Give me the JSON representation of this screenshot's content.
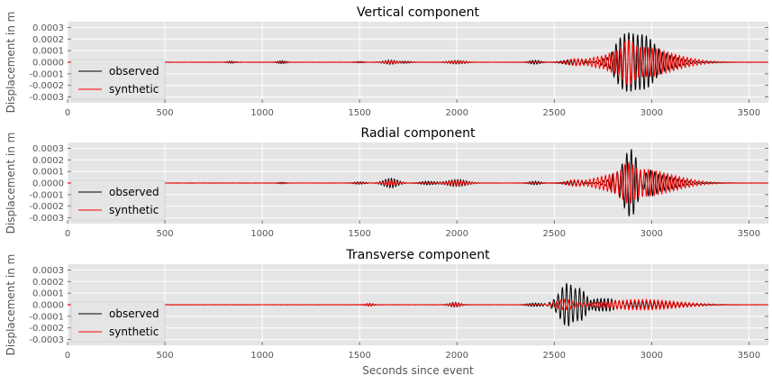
{
  "chart_data": [
    {
      "type": "line",
      "title": "Vertical component",
      "ylabel": "Displacement in m",
      "xlabel": "",
      "xlim": [
        0,
        3600
      ],
      "ylim": [
        -0.00035,
        0.00035
      ],
      "xticks": [
        "0",
        "500",
        "1000",
        "1500",
        "2000",
        "2500",
        "3000",
        "3500"
      ],
      "yticks": [
        "-0.0003",
        "-0.0002",
        "-0.0001",
        "0.0000",
        "0.0001",
        "0.0002",
        "0.0003"
      ],
      "grid": true,
      "legend": "lower-left",
      "series": [
        {
          "name": "observed",
          "color": "#000000",
          "events": [
            {
              "t": 840,
              "amp": 8e-06,
              "period": 12,
              "dur": 30
            },
            {
              "t": 1100,
              "amp": 1.2e-05,
              "period": 12,
              "dur": 30
            },
            {
              "t": 1500,
              "amp": 6e-06,
              "period": 12,
              "dur": 30
            },
            {
              "t": 1660,
              "amp": 1.8e-05,
              "period": 15,
              "dur": 50
            },
            {
              "t": 1730,
              "amp": 1e-05,
              "period": 15,
              "dur": 40
            },
            {
              "t": 2000,
              "amp": 1.5e-05,
              "period": 15,
              "dur": 60
            },
            {
              "t": 2400,
              "amp": 1.7e-05,
              "period": 15,
              "dur": 40
            },
            {
              "t": 2600,
              "amp": 2.5e-05,
              "period": 18,
              "dur": 70
            },
            {
              "t": 2780,
              "amp": 2.2e-05,
              "period": 18,
              "dur": 40
            },
            {
              "t": 2900,
              "amp": 0.00032,
              "period": 22,
              "dur": 90
            },
            {
              "t": 2990,
              "amp": 0.0001,
              "period": 20,
              "dur": 150
            }
          ]
        },
        {
          "name": "synthetic",
          "color": "#ff0000",
          "events": [
            {
              "t": 1660,
              "amp": 1.2e-05,
              "period": 15,
              "dur": 50
            },
            {
              "t": 2000,
              "amp": 1e-05,
              "period": 15,
              "dur": 60
            },
            {
              "t": 2600,
              "amp": 1.5e-05,
              "period": 18,
              "dur": 70
            },
            {
              "t": 2750,
              "amp": 1e-05,
              "period": 18,
              "dur": 40
            },
            {
              "t": 2880,
              "amp": 8e-05,
              "period": 22,
              "dur": 40
            },
            {
              "t": 2940,
              "amp": 0.00013,
              "period": 20,
              "dur": 230
            }
          ]
        }
      ]
    },
    {
      "type": "line",
      "title": "Radial component",
      "ylabel": "Displacement in m",
      "xlabel": "",
      "xlim": [
        0,
        3600
      ],
      "ylim": [
        -0.00035,
        0.00035
      ],
      "xticks": [
        "0",
        "500",
        "1000",
        "1500",
        "2000",
        "2500",
        "3000",
        "3500"
      ],
      "yticks": [
        "-0.0003",
        "-0.0002",
        "-0.0001",
        "0.0000",
        "0.0001",
        "0.0002",
        "0.0003"
      ],
      "grid": true,
      "legend": "lower-left",
      "series": [
        {
          "name": "observed",
          "color": "#000000",
          "events": [
            {
              "t": 1100,
              "amp": 6e-06,
              "period": 12,
              "dur": 30
            },
            {
              "t": 1500,
              "amp": 1e-05,
              "period": 15,
              "dur": 40
            },
            {
              "t": 1660,
              "amp": 4e-05,
              "period": 15,
              "dur": 50
            },
            {
              "t": 1850,
              "amp": 1.5e-05,
              "period": 15,
              "dur": 50
            },
            {
              "t": 2000,
              "amp": 3e-05,
              "period": 15,
              "dur": 70
            },
            {
              "t": 2400,
              "amp": 1.5e-05,
              "period": 15,
              "dur": 40
            },
            {
              "t": 2600,
              "amp": 2e-05,
              "period": 18,
              "dur": 60
            },
            {
              "t": 2780,
              "amp": 1.5e-05,
              "period": 18,
              "dur": 40
            },
            {
              "t": 2890,
              "amp": 0.00024,
              "period": 24,
              "dur": 80
            },
            {
              "t": 2990,
              "amp": 8e-05,
              "period": 20,
              "dur": 160
            }
          ]
        },
        {
          "name": "synthetic",
          "color": "#ff0000",
          "events": [
            {
              "t": 1660,
              "amp": 2e-05,
              "period": 15,
              "dur": 50
            },
            {
              "t": 2000,
              "amp": 2e-05,
              "period": 15,
              "dur": 70
            },
            {
              "t": 2600,
              "amp": 1.5e-05,
              "period": 18,
              "dur": 60
            },
            {
              "t": 2880,
              "amp": 7e-05,
              "period": 22,
              "dur": 40
            },
            {
              "t": 2940,
              "amp": 0.00012,
              "period": 20,
              "dur": 230
            }
          ]
        }
      ]
    },
    {
      "type": "line",
      "title": "Transverse component",
      "ylabel": "Displacement in m",
      "xlabel": "Seconds since event",
      "xlim": [
        0,
        3600
      ],
      "ylim": [
        -0.00035,
        0.00035
      ],
      "xticks": [
        "0",
        "500",
        "1000",
        "1500",
        "2000",
        "2500",
        "3000",
        "3500"
      ],
      "yticks": [
        "-0.0003",
        "-0.0002",
        "-0.0001",
        "0.0000",
        "0.0001",
        "0.0002",
        "0.0003"
      ],
      "grid": true,
      "legend": "lower-left",
      "series": [
        {
          "name": "observed",
          "color": "#000000",
          "events": [
            {
              "t": 1550,
              "amp": 1e-05,
              "period": 15,
              "dur": 30
            },
            {
              "t": 1990,
              "amp": 2e-05,
              "period": 15,
              "dur": 40
            },
            {
              "t": 2400,
              "amp": 1.5e-05,
              "period": 15,
              "dur": 50
            },
            {
              "t": 2580,
              "amp": 0.00019,
              "period": 22,
              "dur": 70
            },
            {
              "t": 2700,
              "amp": 6e-05,
              "period": 18,
              "dur": 120
            },
            {
              "t": 2950,
              "amp": 3e-05,
              "period": 20,
              "dur": 200
            }
          ]
        },
        {
          "name": "synthetic",
          "color": "#ff0000",
          "events": [
            {
              "t": 1550,
              "amp": 1.2e-05,
              "period": 15,
              "dur": 30
            },
            {
              "t": 1990,
              "amp": 1.5e-05,
              "period": 15,
              "dur": 40
            },
            {
              "t": 2550,
              "amp": 4e-05,
              "period": 20,
              "dur": 60
            },
            {
              "t": 2950,
              "amp": 4.5e-05,
              "period": 20,
              "dur": 260
            }
          ]
        }
      ]
    }
  ]
}
